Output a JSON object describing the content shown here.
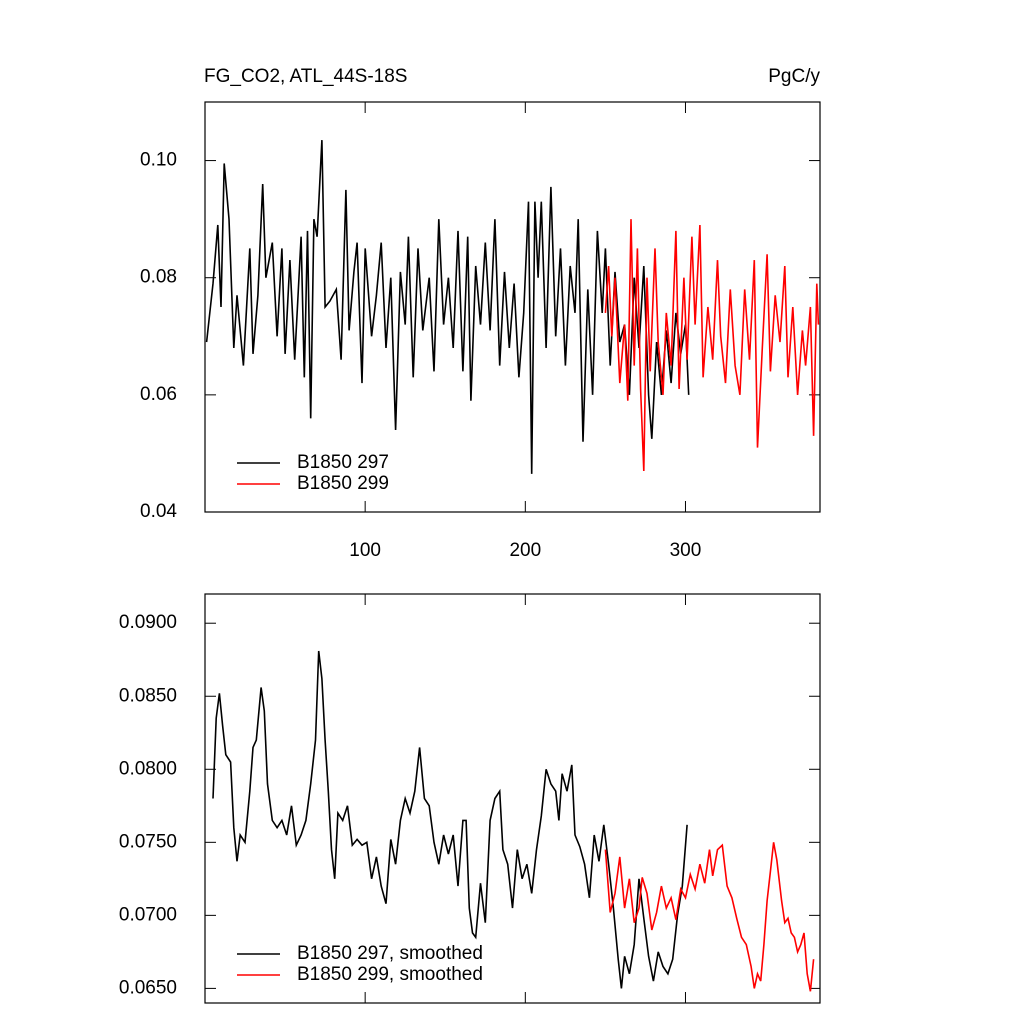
{
  "chart_data": [
    {
      "type": "line",
      "title": "FG_CO2, ATL_44S-18S",
      "units": "PgC/y",
      "xlim": [
        0,
        384
      ],
      "xticks": [
        100,
        200,
        300
      ],
      "show_xtick_labels": true,
      "ylim": [
        0.04,
        0.11
      ],
      "yticks": [
        0.04,
        0.06,
        0.08,
        {
          "value": 0.1,
          "label": "0.10"
        }
      ],
      "legend": "lower left",
      "series": [
        {
          "name": "B1850 297",
          "color": "#000000",
          "x": [
            1,
            5,
            8,
            10,
            12,
            15,
            18,
            20,
            24,
            28,
            30,
            33,
            36,
            38,
            42,
            45,
            48,
            50,
            53,
            56,
            60,
            62,
            64,
            66,
            68,
            70,
            73,
            75,
            78,
            82,
            85,
            88,
            90,
            93,
            95,
            98,
            100,
            104,
            107,
            110,
            113,
            116,
            119,
            122,
            125,
            127,
            130,
            133,
            136,
            140,
            143,
            146,
            149,
            152,
            155,
            158,
            161,
            164,
            166,
            169,
            172,
            175,
            178,
            181,
            184,
            187,
            190,
            193,
            196,
            199,
            202,
            204,
            206,
            208,
            210,
            213,
            216,
            219,
            222,
            225,
            228,
            231,
            233,
            236,
            239,
            242,
            245,
            248,
            250,
            253,
            256,
            259,
            262,
            265,
            268,
            271,
            274,
            277,
            279,
            282,
            285,
            288,
            291,
            294,
            297,
            300,
            302
          ],
          "values": [
            0.069,
            0.079,
            0.089,
            0.075,
            0.0995,
            0.09,
            0.068,
            0.077,
            0.065,
            0.085,
            0.067,
            0.077,
            0.096,
            0.08,
            0.086,
            0.07,
            0.085,
            0.067,
            0.083,
            0.066,
            0.087,
            0.063,
            0.088,
            0.056,
            0.09,
            0.087,
            0.1035,
            0.075,
            0.076,
            0.078,
            0.066,
            0.095,
            0.071,
            0.081,
            0.086,
            0.062,
            0.085,
            0.07,
            0.077,
            0.086,
            0.068,
            0.08,
            0.054,
            0.081,
            0.072,
            0.087,
            0.063,
            0.085,
            0.071,
            0.08,
            0.064,
            0.09,
            0.072,
            0.08,
            0.068,
            0.088,
            0.064,
            0.087,
            0.059,
            0.082,
            0.072,
            0.086,
            0.071,
            0.09,
            0.065,
            0.081,
            0.068,
            0.079,
            0.063,
            0.074,
            0.093,
            0.0465,
            0.093,
            0.08,
            0.093,
            0.068,
            0.0955,
            0.07,
            0.085,
            0.065,
            0.082,
            0.074,
            0.09,
            0.052,
            0.078,
            0.06,
            0.088,
            0.074,
            0.085,
            0.065,
            0.081,
            0.069,
            0.072,
            0.06,
            0.08,
            0.068,
            0.082,
            0.06,
            0.0525,
            0.069,
            0.06,
            0.071,
            0.062,
            0.074,
            0.067,
            0.072,
            0.06
          ]
        },
        {
          "name": "B1850 299",
          "color": "#ff0000",
          "x": [
            250,
            252,
            254,
            256,
            259,
            262,
            264,
            266,
            268,
            270,
            272,
            274,
            276,
            278,
            281,
            283,
            286,
            288,
            291,
            294,
            296,
            299,
            301,
            304,
            306,
            309,
            311,
            314,
            317,
            320,
            322,
            325,
            328,
            331,
            334,
            337,
            340,
            343,
            345,
            348,
            351,
            353,
            356,
            359,
            362,
            364,
            367,
            370,
            373,
            375,
            378,
            380,
            382,
            383
          ],
          "values": [
            0.074,
            0.082,
            0.07,
            0.08,
            0.062,
            0.072,
            0.059,
            0.09,
            0.065,
            0.085,
            0.061,
            0.047,
            0.08,
            0.064,
            0.085,
            0.069,
            0.06,
            0.074,
            0.065,
            0.088,
            0.061,
            0.08,
            0.066,
            0.087,
            0.072,
            0.089,
            0.063,
            0.075,
            0.066,
            0.083,
            0.07,
            0.062,
            0.078,
            0.065,
            0.06,
            0.078,
            0.066,
            0.083,
            0.051,
            0.068,
            0.084,
            0.064,
            0.077,
            0.069,
            0.082,
            0.063,
            0.075,
            0.06,
            0.071,
            0.065,
            0.075,
            0.053,
            0.079,
            0.072
          ]
        }
      ]
    },
    {
      "type": "line",
      "xlim": [
        0,
        384
      ],
      "xticks": [
        100,
        200,
        300
      ],
      "show_xtick_labels": false,
      "ylim": [
        0.064,
        0.092
      ],
      "yticks": [
        {
          "value": 0.065,
          "label": "0.0650"
        },
        {
          "value": 0.07,
          "label": "0.0700"
        },
        {
          "value": 0.075,
          "label": "0.0750"
        },
        {
          "value": 0.08,
          "label": "0.0800"
        },
        {
          "value": 0.085,
          "label": "0.0850"
        },
        {
          "value": 0.09,
          "label": "0.0900"
        }
      ],
      "legend": "lower left",
      "series": [
        {
          "name": "B1850 297, smoothed",
          "color": "#000000",
          "x": [
            5,
            7,
            9,
            11,
            13,
            16,
            18,
            20,
            22,
            25,
            28,
            30,
            32,
            35,
            37,
            39,
            42,
            45,
            48,
            51,
            54,
            57,
            60,
            63,
            66,
            69,
            71,
            73,
            75,
            77,
            79,
            81,
            83,
            86,
            89,
            92,
            95,
            98,
            101,
            104,
            107,
            110,
            113,
            116,
            119,
            122,
            125,
            128,
            131,
            134,
            137,
            140,
            143,
            146,
            149,
            152,
            155,
            158,
            161,
            163,
            165,
            167,
            169,
            172,
            175,
            178,
            181,
            184,
            186,
            189,
            192,
            195,
            198,
            201,
            204,
            207,
            210,
            213,
            216,
            219,
            221,
            223,
            226,
            229,
            231,
            234,
            237,
            240,
            243,
            246,
            249,
            252,
            255,
            258,
            260,
            262,
            265,
            268,
            271,
            274,
            277,
            280,
            283,
            286,
            289,
            292,
            295,
            298,
            301
          ],
          "values": [
            0.078,
            0.0835,
            0.0852,
            0.083,
            0.081,
            0.0805,
            0.076,
            0.0737,
            0.0755,
            0.075,
            0.0785,
            0.0815,
            0.082,
            0.0856,
            0.084,
            0.079,
            0.0765,
            0.076,
            0.0765,
            0.0755,
            0.0775,
            0.0748,
            0.0755,
            0.0765,
            0.079,
            0.082,
            0.0881,
            0.0862,
            0.082,
            0.0785,
            0.0745,
            0.0725,
            0.077,
            0.0765,
            0.0775,
            0.0748,
            0.0752,
            0.0748,
            0.075,
            0.0725,
            0.074,
            0.072,
            0.0708,
            0.0752,
            0.0735,
            0.0765,
            0.078,
            0.077,
            0.0785,
            0.0815,
            0.078,
            0.0775,
            0.075,
            0.0735,
            0.0755,
            0.0742,
            0.0755,
            0.072,
            0.0765,
            0.0765,
            0.0705,
            0.0688,
            0.0685,
            0.0722,
            0.0695,
            0.0765,
            0.078,
            0.0785,
            0.0745,
            0.0735,
            0.0705,
            0.0745,
            0.0725,
            0.0735,
            0.0715,
            0.0745,
            0.0768,
            0.08,
            0.079,
            0.0785,
            0.0765,
            0.0797,
            0.0785,
            0.0803,
            0.0755,
            0.0747,
            0.0735,
            0.0712,
            0.0755,
            0.0737,
            0.0762,
            0.0735,
            0.0705,
            0.067,
            0.065,
            0.0672,
            0.066,
            0.068,
            0.0725,
            0.0698,
            0.0672,
            0.0655,
            0.0675,
            0.0665,
            0.066,
            0.067,
            0.07,
            0.072,
            0.0762
          ]
        },
        {
          "name": "B1850 299, smoothed",
          "color": "#ff0000",
          "x": [
            250,
            253,
            256,
            259,
            262,
            265,
            268,
            271,
            273,
            276,
            279,
            282,
            285,
            288,
            291,
            294,
            297,
            300,
            303,
            306,
            309,
            312,
            315,
            317,
            320,
            323,
            326,
            329,
            332,
            335,
            338,
            341,
            343,
            345,
            347,
            349,
            351,
            353,
            355,
            357,
            360,
            362,
            364,
            366,
            368,
            370,
            372,
            374,
            376,
            378,
            380
          ],
          "values": [
            0.0745,
            0.0702,
            0.0715,
            0.074,
            0.0705,
            0.0725,
            0.0695,
            0.0705,
            0.0726,
            0.0715,
            0.069,
            0.0702,
            0.072,
            0.0705,
            0.0712,
            0.0697,
            0.0718,
            0.0712,
            0.0728,
            0.0718,
            0.0735,
            0.0722,
            0.0745,
            0.0727,
            0.0745,
            0.0748,
            0.072,
            0.0712,
            0.0698,
            0.0685,
            0.068,
            0.0665,
            0.065,
            0.066,
            0.0655,
            0.068,
            0.071,
            0.073,
            0.075,
            0.0738,
            0.071,
            0.0695,
            0.0698,
            0.0688,
            0.0685,
            0.0675,
            0.068,
            0.0688,
            0.066,
            0.0648,
            0.067
          ]
        }
      ]
    }
  ]
}
